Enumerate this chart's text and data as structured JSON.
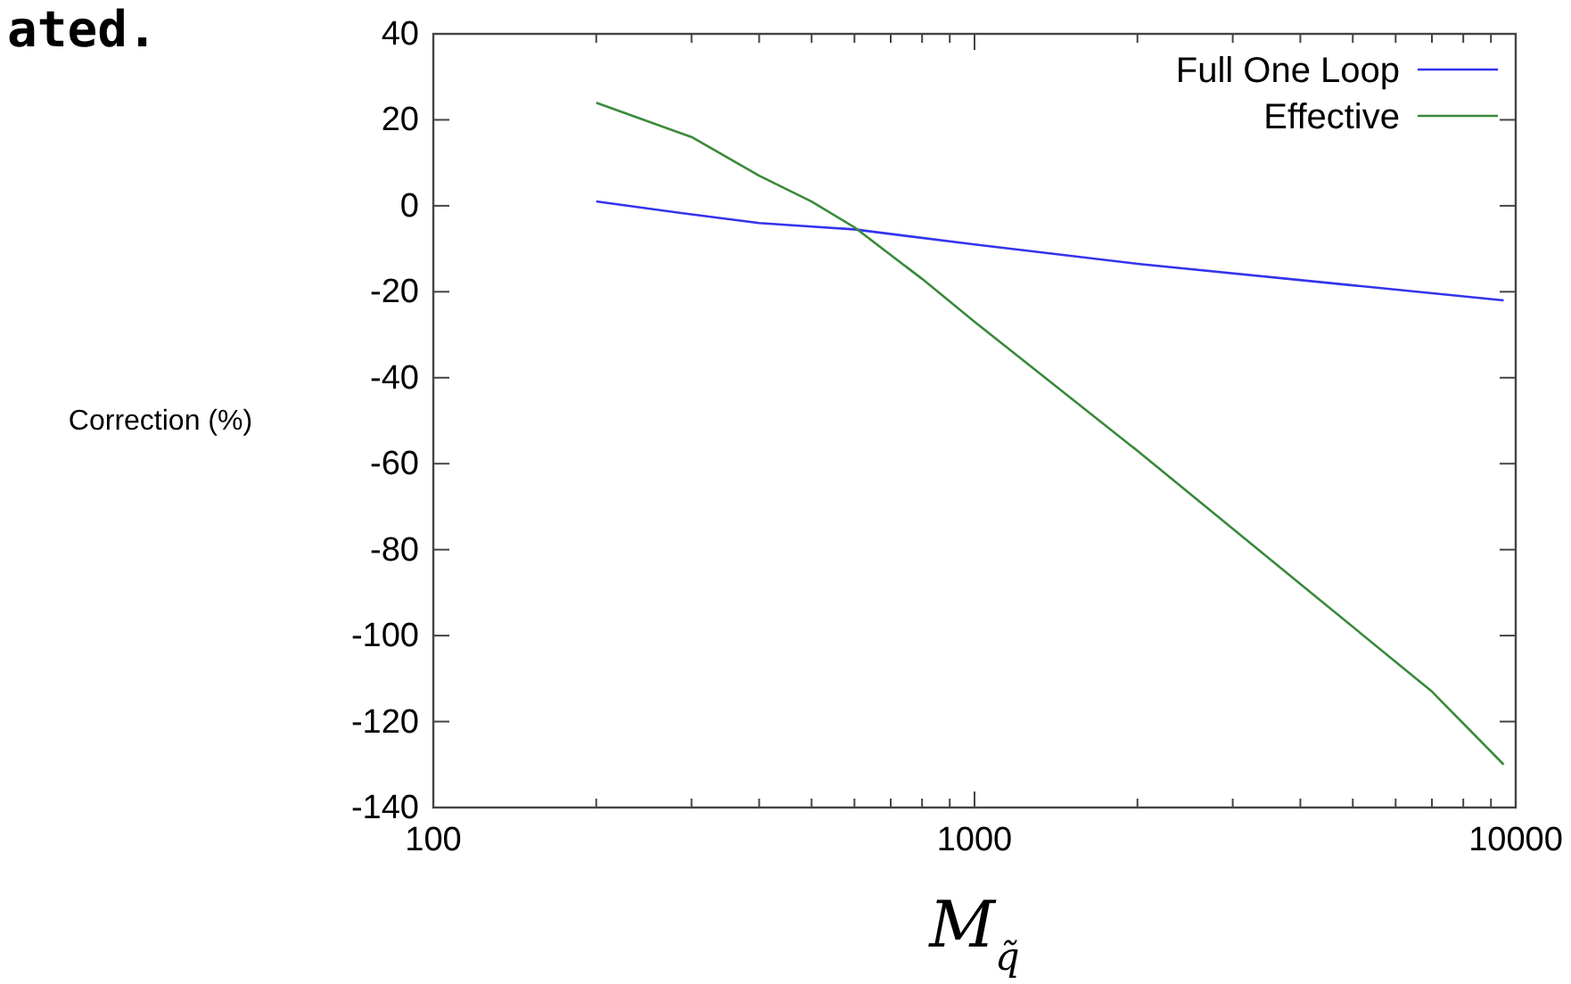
{
  "chart_data": {
    "type": "line",
    "xlabel": "M$_{q̃}$",
    "ylabel": "Correction (%)",
    "annotations": [
      "ated."
    ],
    "log": "x",
    "xlim": [
      100,
      10000
    ],
    "xticks": [
      100,
      1000,
      10000
    ],
    "ylim": [
      -140,
      40
    ],
    "yticks": [
      -140,
      -120,
      -100,
      -80,
      -60,
      -40,
      -20,
      0,
      20,
      40
    ],
    "legend": "top right",
    "grid": false,
    "series": [
      {
        "name": "Full One Loop",
        "color": "#3333ee",
        "x": [
          200,
          300,
          400,
          600,
          1000,
          2000,
          5000,
          9500
        ],
        "values": [
          1,
          -2,
          -4,
          -5.5,
          -9,
          -13.5,
          -18.5,
          -22
        ]
      },
      {
        "name": "Effective",
        "color": "#3a8a3a",
        "x": [
          200,
          300,
          400,
          500,
          600,
          800,
          1000,
          2000,
          4000,
          7000,
          9500
        ],
        "values": [
          24,
          16,
          7,
          1,
          -5,
          -17,
          -27,
          -57,
          -88,
          -113,
          -130
        ]
      }
    ]
  }
}
